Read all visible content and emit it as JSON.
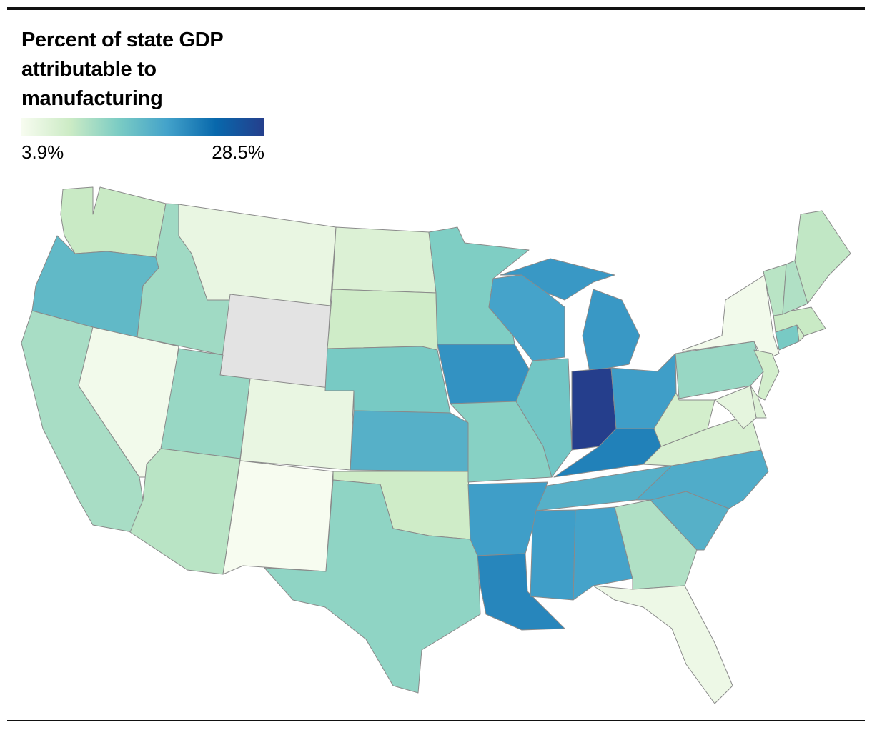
{
  "title": "Percent of state GDP attributable to manufacturing",
  "legend": {
    "min_label": "3.9%",
    "max_label": "28.5%",
    "min_value": 3.9,
    "max_value": 28.5,
    "colors": [
      "#f7fcf0",
      "#ccebc5",
      "#7bccc4",
      "#43a2ca",
      "#0868ac",
      "#253e8c"
    ]
  },
  "no_data_color": "#e3e3e3",
  "water_color": "#ffffff",
  "chart_data": {
    "type": "choropleth",
    "title": "Percent of state GDP attributable to manufacturing",
    "unit": "%",
    "range": [
      3.9,
      28.5
    ],
    "states": [
      {
        "code": "WA",
        "value": 9
      },
      {
        "code": "OR",
        "value": 16
      },
      {
        "code": "CA",
        "value": 11
      },
      {
        "code": "NV",
        "value": 4.5
      },
      {
        "code": "ID",
        "value": 11.5
      },
      {
        "code": "MT",
        "value": 5.5
      },
      {
        "code": "WY",
        "value": null
      },
      {
        "code": "UT",
        "value": 12
      },
      {
        "code": "CO",
        "value": 5.5
      },
      {
        "code": "AZ",
        "value": 10
      },
      {
        "code": "NM",
        "value": 3.9
      },
      {
        "code": "ND",
        "value": 7
      },
      {
        "code": "SD",
        "value": 8.5
      },
      {
        "code": "NE",
        "value": 14
      },
      {
        "code": "KS",
        "value": 17
      },
      {
        "code": "OK",
        "value": 8.5
      },
      {
        "code": "TX",
        "value": 12.5
      },
      {
        "code": "MN",
        "value": 13.5
      },
      {
        "code": "IA",
        "value": 20
      },
      {
        "code": "MO",
        "value": 13
      },
      {
        "code": "AR",
        "value": 19
      },
      {
        "code": "LA",
        "value": 21
      },
      {
        "code": "WI",
        "value": 18.5
      },
      {
        "code": "IL",
        "value": 14.5
      },
      {
        "code": "MI",
        "value": 19.5
      },
      {
        "code": "IN",
        "value": 28.5
      },
      {
        "code": "OH",
        "value": 19
      },
      {
        "code": "KY",
        "value": 21.5
      },
      {
        "code": "TN",
        "value": 17
      },
      {
        "code": "MS",
        "value": 19
      },
      {
        "code": "AL",
        "value": 18.5
      },
      {
        "code": "GA",
        "value": 10.5
      },
      {
        "code": "FL",
        "value": 5
      },
      {
        "code": "SC",
        "value": 17
      },
      {
        "code": "NC",
        "value": 17.5
      },
      {
        "code": "VA",
        "value": 7.5
      },
      {
        "code": "WV",
        "value": 8
      },
      {
        "code": "PA",
        "value": 12
      },
      {
        "code": "NY",
        "value": 4.5
      },
      {
        "code": "NJ",
        "value": 8
      },
      {
        "code": "DE",
        "value": 7
      },
      {
        "code": "MD",
        "value": 6
      },
      {
        "code": "CT",
        "value": 14
      },
      {
        "code": "RI",
        "value": 8
      },
      {
        "code": "MA",
        "value": 9
      },
      {
        "code": "VT",
        "value": 10
      },
      {
        "code": "NH",
        "value": 10.5
      },
      {
        "code": "ME",
        "value": 9.5
      }
    ]
  }
}
